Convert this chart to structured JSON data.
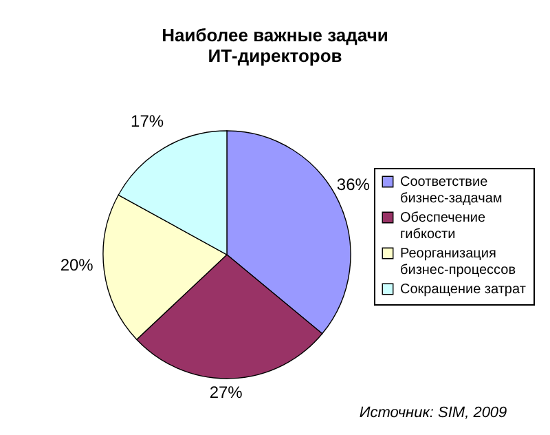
{
  "chart_data": {
    "type": "pie",
    "title": "Наиболее важные задачи\nИТ-директоров",
    "categories": [
      "Соответствие бизнес-задачам",
      "Обеспечение гибкости",
      "Реорганизация бизнес-процессов",
      "Сокращение затрат"
    ],
    "values": [
      36,
      27,
      20,
      17
    ],
    "value_labels": [
      "36%",
      "27%",
      "20%",
      "17%"
    ],
    "colors": [
      "#9999ff",
      "#993366",
      "#ffffcc",
      "#ccffff"
    ],
    "legend": "right",
    "annotations": [
      "Источник: SIM, 2009"
    ]
  }
}
